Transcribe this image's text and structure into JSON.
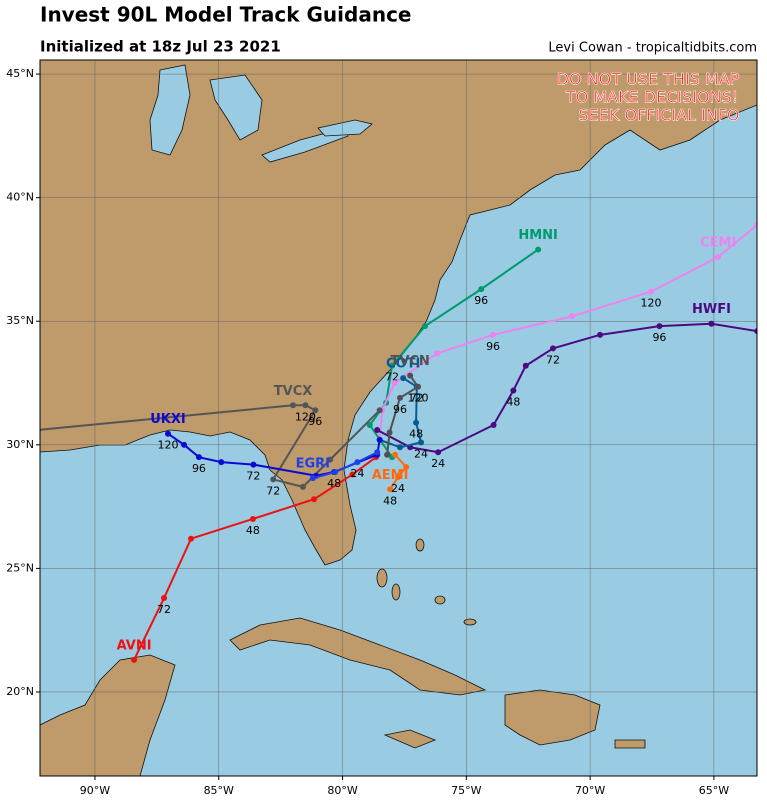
{
  "header": {
    "title": "Invest 90L Model Track Guidance",
    "subtitle": "Initialized at 18z Jul 23 2021",
    "credit": "Levi Cowan - tropicaltidbits.com"
  },
  "warning": [
    "DO NOT USE THIS MAP",
    "TO MAKE DECISIONS!",
    "SEEK OFFICIAL INFO"
  ],
  "map": {
    "lon_range": [
      -92.22,
      -63.26
    ],
    "lat_range": [
      16.6,
      45.57
    ],
    "lon_ticks": [
      {
        "value": -90,
        "label": "90°W"
      },
      {
        "value": -85,
        "label": "85°W"
      },
      {
        "value": -80,
        "label": "80°W"
      },
      {
        "value": -75,
        "label": "75°W"
      },
      {
        "value": -70,
        "label": "70°W"
      },
      {
        "value": -65,
        "label": "65°W"
      }
    ],
    "lat_ticks": [
      {
        "value": 20,
        "label": "20°N"
      },
      {
        "value": 25,
        "label": "25°N"
      },
      {
        "value": 30,
        "label": "30°N"
      },
      {
        "value": 35,
        "label": "35°N"
      },
      {
        "value": 40,
        "label": "40°N"
      },
      {
        "value": 45,
        "label": "45°N"
      }
    ],
    "tracks": [
      {
        "name": "AVNI",
        "color": "#ee1111",
        "lon": [
          -88.42,
          -87.21,
          -86.12,
          -83.62,
          -81.15,
          -79.6,
          -78.65
        ],
        "lat": [
          21.3,
          23.8,
          26.2,
          27.0,
          27.8,
          28.8,
          29.5
        ],
        "hours": [
          null,
          72,
          null,
          48,
          null,
          null,
          null
        ]
      },
      {
        "name": "HMNI",
        "color": "#009a6e",
        "lon": [
          -72.1,
          -74.4,
          -76.67,
          -78.0,
          -78.24,
          -78.9,
          -78.0
        ],
        "lat": [
          37.9,
          36.3,
          34.8,
          33.2,
          31.7,
          30.8,
          29.5
        ],
        "hours": [
          null,
          96,
          null,
          72,
          null,
          null,
          null
        ]
      },
      {
        "name": "CEMI",
        "color": "#ee82ee",
        "lon": [
          -63.25,
          -64.83,
          -67.54,
          -70.73,
          -73.92,
          -76.18,
          -77.9,
          -78.4,
          -78.5
        ],
        "lat": [
          38.9,
          37.6,
          36.2,
          35.2,
          34.45,
          33.7,
          32.5,
          31.4,
          30.2
        ],
        "hours": [
          null,
          null,
          120,
          null,
          96,
          null,
          null,
          null,
          null
        ]
      },
      {
        "name": "HWFI",
        "color": "#4b0a82",
        "lon": [
          -63.25,
          -65.1,
          -67.2,
          -69.6,
          -71.5,
          -72.6,
          -73.1,
          -73.9,
          -76.14,
          -77.27,
          -78.6
        ],
        "lat": [
          34.6,
          34.9,
          34.8,
          34.45,
          33.9,
          33.2,
          32.2,
          30.8,
          29.7,
          29.9,
          30.6
        ],
        "hours": [
          null,
          null,
          96,
          null,
          72,
          null,
          48,
          null,
          24,
          null,
          null
        ]
      },
      {
        "name": "COTI",
        "color": "#075a96",
        "lon": [
          -77.55,
          -77.0,
          -77.03,
          -76.83,
          -77.68,
          -78.5
        ],
        "lat": [
          32.7,
          32.35,
          30.9,
          30.1,
          29.9,
          30.2
        ],
        "hours": [
          null,
          72,
          48,
          24,
          null,
          null
        ]
      },
      {
        "name": "TVCN",
        "color": "#505050",
        "lon": [
          -77.27,
          -76.95,
          -77.68,
          -78.1,
          -78.2
        ],
        "lat": [
          32.8,
          32.35,
          31.9,
          30.5,
          29.6
        ],
        "hours": [
          null,
          120,
          96,
          null,
          null
        ]
      },
      {
        "name": "TVCX",
        "color": "#555555",
        "lon": [
          -92.3,
          -82.0,
          -81.5,
          -81.1,
          -82.8,
          -81.6,
          -80.5,
          -78.5
        ],
        "lat": [
          30.6,
          31.6,
          31.6,
          31.4,
          28.6,
          28.3,
          29.4,
          31.4
        ],
        "hours": [
          null,
          null,
          120,
          96,
          72,
          null,
          null,
          null
        ]
      },
      {
        "name": "UKXI",
        "color": "#0a0ad0",
        "lon": [
          -87.05,
          -86.4,
          -85.8,
          -84.9,
          -83.6,
          -81.07,
          -80.34,
          -78.6,
          -78.5
        ],
        "lat": [
          30.45,
          30.0,
          29.5,
          29.3,
          29.2,
          28.75,
          28.9,
          29.6,
          30.2
        ],
        "hours": [
          120,
          null,
          96,
          null,
          72,
          null,
          48,
          null,
          null
        ]
      },
      {
        "name": "EGRI",
        "color": "#1f3fe8",
        "lon": [
          -81.2,
          -80.3,
          -79.4,
          -78.6
        ],
        "lat": [
          28.65,
          28.9,
          29.3,
          29.7
        ],
        "hours": [
          null,
          null,
          24,
          null
        ]
      },
      {
        "name": "AEMI",
        "color": "#ff6a10",
        "lon": [
          -78.08,
          -77.76,
          -77.43,
          -77.88
        ],
        "lat": [
          28.2,
          28.7,
          29.1,
          29.6
        ],
        "hours": [
          48,
          24,
          null,
          null
        ]
      }
    ]
  }
}
